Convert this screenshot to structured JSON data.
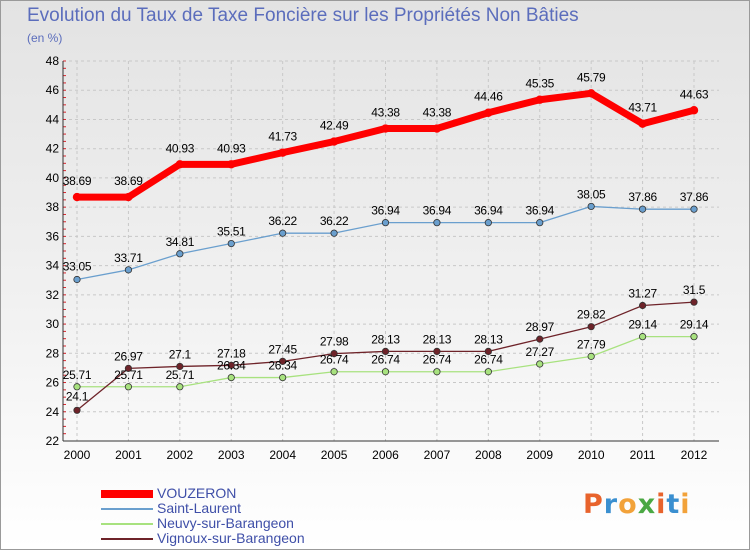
{
  "header": {
    "title": "Evolution du Taux de Taxe Foncière sur les Propriétés Non Bâties",
    "unit": "(en %)"
  },
  "logo": {
    "letters": [
      "P",
      "r",
      "o",
      "x",
      "i",
      "t",
      "i"
    ],
    "colors": [
      "#e8632c",
      "#3a8fd0",
      "#f2a23a",
      "#4aa843",
      "#e8632c",
      "#3a8fd0",
      "#f2a23a"
    ]
  },
  "chart_data": {
    "type": "line",
    "x": [
      "2000",
      "2001",
      "2002",
      "2003",
      "2004",
      "2005",
      "2006",
      "2007",
      "2008",
      "2009",
      "2010",
      "2011",
      "2012"
    ],
    "ylim": [
      22,
      48
    ],
    "yticks": [
      22,
      24,
      26,
      28,
      30,
      32,
      34,
      36,
      38,
      40,
      42,
      44,
      46,
      48
    ],
    "grid": true,
    "legend": "bottom-left",
    "series": [
      {
        "name": "VOUZERON",
        "color": "#ff0000",
        "values": [
          38.69,
          38.69,
          40.93,
          40.93,
          41.73,
          42.49,
          43.38,
          43.38,
          44.46,
          45.35,
          45.79,
          43.71,
          44.63
        ],
        "labels": [
          "38.69",
          "38.69",
          "40.93",
          "40.93",
          "41.73",
          "42.49",
          "43.38",
          "43.38",
          "44.46",
          "45.35",
          "45.79",
          "43.71",
          "44.63"
        ]
      },
      {
        "name": "Saint-Laurent",
        "color": "#6a9fce",
        "values": [
          33.05,
          33.71,
          34.81,
          35.51,
          36.22,
          36.22,
          36.94,
          36.94,
          36.94,
          36.94,
          38.05,
          37.86,
          37.86
        ],
        "labels": [
          "33.05",
          "33.71",
          "34.81",
          "35.51",
          "36.22",
          "36.22",
          "36.94",
          "36.94",
          "36.94",
          "36.94",
          "38.05",
          "37.86",
          "37.86"
        ]
      },
      {
        "name": "Neuvy-sur-Barangeon",
        "color": "#a8e27f",
        "values": [
          25.71,
          25.71,
          25.71,
          26.34,
          26.34,
          26.74,
          26.74,
          26.74,
          26.74,
          27.27,
          27.79,
          29.14,
          29.14
        ],
        "labels": [
          "25.71",
          "25.71",
          "25.71",
          "26.34",
          "26.34",
          "26.74",
          "26.74",
          "26.74",
          "26.74",
          "27.27",
          "27.79",
          "29.14",
          "29.14"
        ]
      },
      {
        "name": "Vignoux-sur-Barangeon",
        "color": "#6e2329",
        "values": [
          24.1,
          26.97,
          27.1,
          27.18,
          27.45,
          27.98,
          28.13,
          28.13,
          28.13,
          28.97,
          29.82,
          31.27,
          31.5
        ],
        "labels": [
          "24.1",
          "26.97",
          "27.1",
          "27.18",
          "27.45",
          "27.98",
          "28.13",
          "28.13",
          "28.13",
          "28.97",
          "29.82",
          "31.27",
          "31.5"
        ]
      }
    ]
  }
}
